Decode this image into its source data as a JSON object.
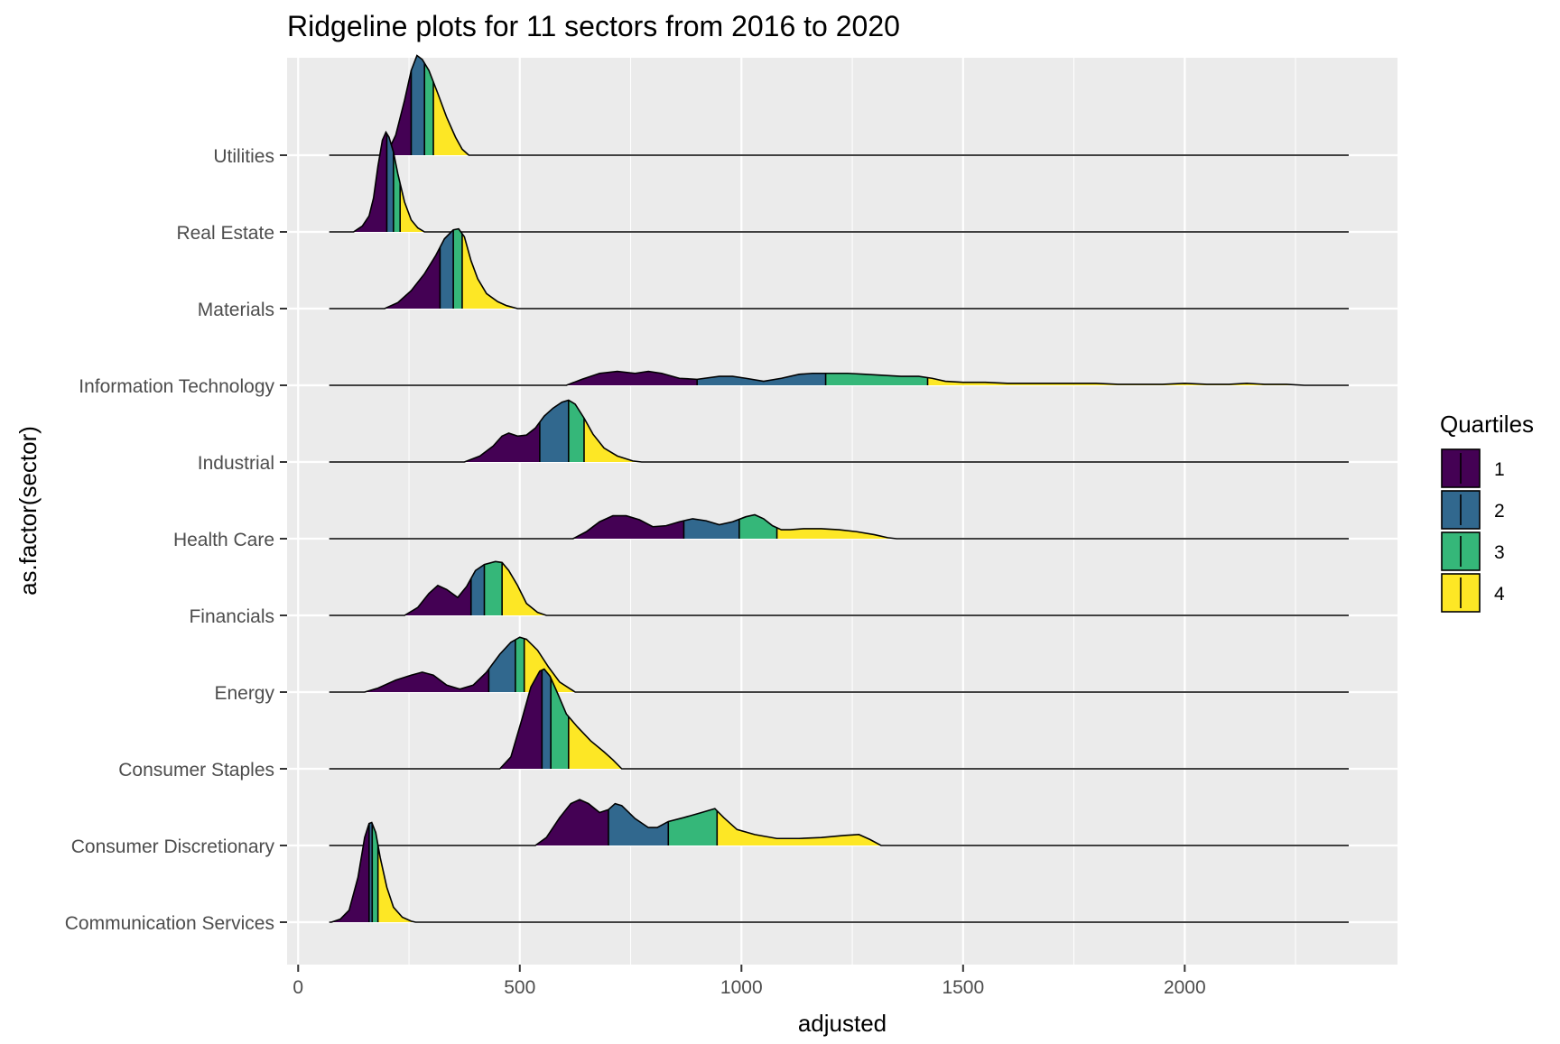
{
  "chart_data": {
    "type": "ridgeline",
    "title": "Ridgeline plots for 11 sectors from 2016 to 2020",
    "xlabel": "adjusted",
    "ylabel": "as.factor(sector)",
    "xlim": [
      -25,
      2480
    ],
    "x_ticks": [
      0,
      500,
      1000,
      1500,
      2000
    ],
    "x_tick_labels": [
      "0",
      "500",
      "1000",
      "1500",
      "2000"
    ],
    "x_minor_ticks": [
      250,
      750,
      1250,
      1750,
      2250
    ],
    "baseline_range": [
      70,
      2370
    ],
    "grid": true,
    "legend": {
      "title": "Quartiles",
      "position": "right",
      "entries": [
        "1",
        "2",
        "3",
        "4"
      ],
      "colors": [
        "#440154",
        "#31688E",
        "#35B779",
        "#FDE725"
      ]
    },
    "categories": [
      "Communication Services",
      "Consumer Discretionary",
      "Consumer Staples",
      "Energy",
      "Financials",
      "Health Care",
      "Industrial",
      "Information Technology",
      "Materials",
      "Real Estate",
      "Utilities"
    ],
    "series": [
      {
        "category": "Communication Services",
        "quartiles": [
          140,
          160,
          167,
          180
        ],
        "density": [
          [
            75,
            0
          ],
          [
            95,
            0.03
          ],
          [
            115,
            0.12
          ],
          [
            135,
            0.45
          ],
          [
            150,
            0.85
          ],
          [
            160,
            0.99
          ],
          [
            166,
            1.0
          ],
          [
            175,
            0.9
          ],
          [
            185,
            0.65
          ],
          [
            200,
            0.35
          ],
          [
            215,
            0.15
          ],
          [
            235,
            0.05
          ],
          [
            255,
            0.01
          ],
          [
            265,
            0
          ]
        ]
      },
      {
        "category": "Consumer Discretionary",
        "quartiles": [
          500,
          700,
          835,
          945
        ],
        "density": [
          [
            535,
            0
          ],
          [
            560,
            0.08
          ],
          [
            590,
            0.28
          ],
          [
            615,
            0.42
          ],
          [
            635,
            0.46
          ],
          [
            655,
            0.42
          ],
          [
            680,
            0.33
          ],
          [
            700,
            0.36
          ],
          [
            715,
            0.42
          ],
          [
            730,
            0.4
          ],
          [
            760,
            0.27
          ],
          [
            790,
            0.18
          ],
          [
            810,
            0.18
          ],
          [
            835,
            0.24
          ],
          [
            870,
            0.28
          ],
          [
            910,
            0.33
          ],
          [
            940,
            0.37
          ],
          [
            960,
            0.28
          ],
          [
            990,
            0.16
          ],
          [
            1030,
            0.11
          ],
          [
            1080,
            0.07
          ],
          [
            1130,
            0.07
          ],
          [
            1180,
            0.08
          ],
          [
            1230,
            0.1
          ],
          [
            1265,
            0.11
          ],
          [
            1290,
            0.06
          ],
          [
            1315,
            0
          ]
        ]
      },
      {
        "category": "Consumer Staples",
        "quartiles": [
          450,
          550,
          570,
          610
        ],
        "density": [
          [
            455,
            0
          ],
          [
            480,
            0.12
          ],
          [
            505,
            0.5
          ],
          [
            525,
            0.82
          ],
          [
            545,
            0.98
          ],
          [
            555,
            1.0
          ],
          [
            568,
            0.93
          ],
          [
            585,
            0.76
          ],
          [
            605,
            0.55
          ],
          [
            630,
            0.42
          ],
          [
            660,
            0.28
          ],
          [
            690,
            0.17
          ],
          [
            710,
            0.09
          ],
          [
            730,
            0
          ]
        ]
      },
      {
        "category": "Energy",
        "quartiles": [
          100,
          430,
          490,
          510
        ],
        "density": [
          [
            150,
            0
          ],
          [
            180,
            0.04
          ],
          [
            220,
            0.12
          ],
          [
            255,
            0.17
          ],
          [
            280,
            0.2
          ],
          [
            305,
            0.17
          ],
          [
            335,
            0.07
          ],
          [
            365,
            0.03
          ],
          [
            395,
            0.07
          ],
          [
            425,
            0.2
          ],
          [
            455,
            0.38
          ],
          [
            480,
            0.5
          ],
          [
            500,
            0.55
          ],
          [
            515,
            0.53
          ],
          [
            540,
            0.42
          ],
          [
            565,
            0.25
          ],
          [
            590,
            0.1
          ],
          [
            625,
            0
          ]
        ]
      },
      {
        "category": "Financials",
        "quartiles": [
          250,
          390,
          420,
          460
        ],
        "density": [
          [
            240,
            0
          ],
          [
            270,
            0.08
          ],
          [
            295,
            0.22
          ],
          [
            315,
            0.3
          ],
          [
            335,
            0.26
          ],
          [
            360,
            0.18
          ],
          [
            380,
            0.29
          ],
          [
            400,
            0.45
          ],
          [
            420,
            0.51
          ],
          [
            445,
            0.54
          ],
          [
            460,
            0.53
          ],
          [
            475,
            0.45
          ],
          [
            495,
            0.3
          ],
          [
            515,
            0.12
          ],
          [
            540,
            0.03
          ],
          [
            560,
            0
          ]
        ]
      },
      {
        "category": "Health Care",
        "quartiles": [
          620,
          870,
          995,
          1080
        ],
        "density": [
          [
            620,
            0
          ],
          [
            650,
            0.07
          ],
          [
            680,
            0.17
          ],
          [
            710,
            0.23
          ],
          [
            740,
            0.23
          ],
          [
            770,
            0.19
          ],
          [
            800,
            0.12
          ],
          [
            830,
            0.13
          ],
          [
            860,
            0.17
          ],
          [
            890,
            0.2
          ],
          [
            920,
            0.18
          ],
          [
            950,
            0.14
          ],
          [
            980,
            0.17
          ],
          [
            1010,
            0.22
          ],
          [
            1030,
            0.24
          ],
          [
            1050,
            0.2
          ],
          [
            1070,
            0.13
          ],
          [
            1090,
            0.09
          ],
          [
            1110,
            0.09
          ],
          [
            1140,
            0.1
          ],
          [
            1180,
            0.1
          ],
          [
            1220,
            0.09
          ],
          [
            1260,
            0.07
          ],
          [
            1300,
            0.04
          ],
          [
            1330,
            0.01
          ],
          [
            1350,
            0
          ]
        ]
      },
      {
        "category": "Industrial",
        "quartiles": [
          380,
          545,
          610,
          645
        ],
        "density": [
          [
            375,
            0
          ],
          [
            410,
            0.06
          ],
          [
            440,
            0.16
          ],
          [
            460,
            0.26
          ],
          [
            475,
            0.29
          ],
          [
            495,
            0.26
          ],
          [
            515,
            0.27
          ],
          [
            535,
            0.34
          ],
          [
            555,
            0.46
          ],
          [
            575,
            0.54
          ],
          [
            595,
            0.6
          ],
          [
            610,
            0.62
          ],
          [
            625,
            0.58
          ],
          [
            645,
            0.44
          ],
          [
            665,
            0.28
          ],
          [
            690,
            0.14
          ],
          [
            720,
            0.06
          ],
          [
            755,
            0.01
          ],
          [
            775,
            0
          ]
        ]
      },
      {
        "category": "Information Technology",
        "quartiles": [
          610,
          900,
          1190,
          1420
        ],
        "density": [
          [
            605,
            0
          ],
          [
            640,
            0.06
          ],
          [
            680,
            0.12
          ],
          [
            720,
            0.14
          ],
          [
            760,
            0.12
          ],
          [
            790,
            0.14
          ],
          [
            820,
            0.12
          ],
          [
            860,
            0.07
          ],
          [
            900,
            0.06
          ],
          [
            950,
            0.09
          ],
          [
            980,
            0.09
          ],
          [
            1010,
            0.07
          ],
          [
            1050,
            0.04
          ],
          [
            1090,
            0.07
          ],
          [
            1130,
            0.11
          ],
          [
            1160,
            0.12
          ],
          [
            1200,
            0.12
          ],
          [
            1240,
            0.12
          ],
          [
            1280,
            0.11
          ],
          [
            1320,
            0.1
          ],
          [
            1360,
            0.09
          ],
          [
            1400,
            0.09
          ],
          [
            1430,
            0.07
          ],
          [
            1460,
            0.04
          ],
          [
            1500,
            0.03
          ],
          [
            1550,
            0.03
          ],
          [
            1600,
            0.02
          ],
          [
            1650,
            0.02
          ],
          [
            1700,
            0.02
          ],
          [
            1750,
            0.02
          ],
          [
            1800,
            0.02
          ],
          [
            1850,
            0.01
          ],
          [
            1900,
            0.01
          ],
          [
            1950,
            0.01
          ],
          [
            2000,
            0.02
          ],
          [
            2050,
            0.01
          ],
          [
            2100,
            0.01
          ],
          [
            2140,
            0.02
          ],
          [
            2180,
            0.01
          ],
          [
            2230,
            0.01
          ],
          [
            2270,
            0
          ]
        ]
      },
      {
        "category": "Materials",
        "quartiles": [
          175,
          320,
          350,
          370
        ],
        "density": [
          [
            195,
            0
          ],
          [
            225,
            0.06
          ],
          [
            255,
            0.18
          ],
          [
            285,
            0.35
          ],
          [
            310,
            0.53
          ],
          [
            330,
            0.7
          ],
          [
            350,
            0.79
          ],
          [
            362,
            0.8
          ],
          [
            375,
            0.72
          ],
          [
            390,
            0.48
          ],
          [
            405,
            0.3
          ],
          [
            425,
            0.15
          ],
          [
            450,
            0.07
          ],
          [
            470,
            0.03
          ],
          [
            495,
            0
          ]
        ]
      },
      {
        "category": "Real Estate",
        "quartiles": [
          70,
          200,
          215,
          230
        ],
        "density": [
          [
            125,
            0
          ],
          [
            145,
            0.06
          ],
          [
            160,
            0.16
          ],
          [
            170,
            0.34
          ],
          [
            180,
            0.66
          ],
          [
            190,
            0.92
          ],
          [
            198,
            1.0
          ],
          [
            205,
            0.95
          ],
          [
            215,
            0.8
          ],
          [
            225,
            0.58
          ],
          [
            240,
            0.3
          ],
          [
            255,
            0.12
          ],
          [
            270,
            0.04
          ],
          [
            285,
            0
          ]
        ]
      },
      {
        "category": "Utilities",
        "quartiles": [
          190,
          255,
          285,
          305
        ],
        "density": [
          [
            185,
            0
          ],
          [
            205,
            0.06
          ],
          [
            220,
            0.2
          ],
          [
            240,
            0.55
          ],
          [
            255,
            0.85
          ],
          [
            268,
            1.0
          ],
          [
            280,
            0.96
          ],
          [
            295,
            0.85
          ],
          [
            315,
            0.62
          ],
          [
            335,
            0.38
          ],
          [
            355,
            0.18
          ],
          [
            370,
            0.06
          ],
          [
            385,
            0
          ]
        ]
      }
    ]
  }
}
